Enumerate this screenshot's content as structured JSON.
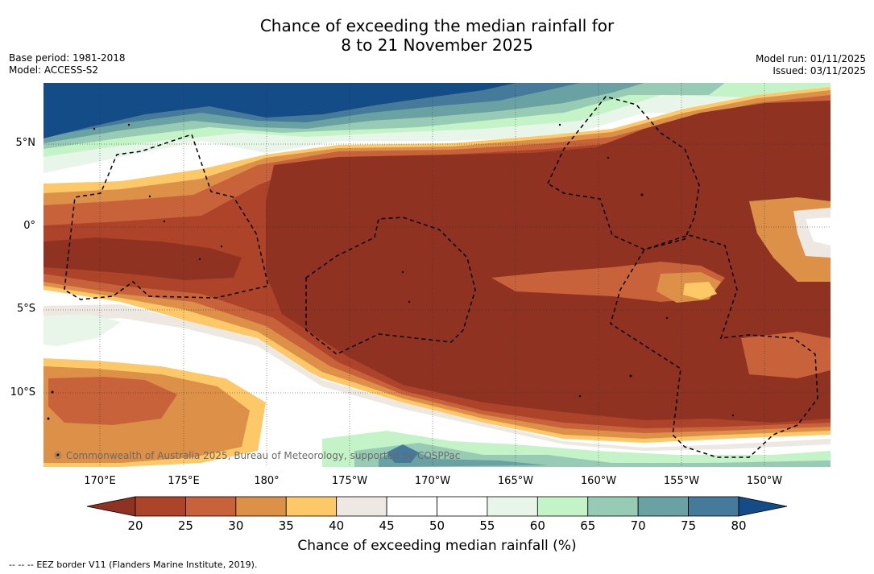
{
  "title": {
    "line1": "Chance of exceeding the median rainfall for",
    "line2": "8 to 21 November 2025"
  },
  "metadata": {
    "base_period": "Base period: 1981-2018",
    "model": "Model: ACCESS-S2",
    "model_run": "Model run: 01/11/2025",
    "issued": "Issued: 03/11/2025"
  },
  "map": {
    "latitude_labels": [
      "5°N",
      "0°",
      "5°S",
      "10°S"
    ],
    "longitude_labels": [
      "170°E",
      "175°E",
      "180°",
      "175°W",
      "170°W",
      "165°W",
      "160°W",
      "155°W",
      "150°W"
    ],
    "copyright": "© Commonwealth of Australia 2025, Bureau of Meteorology, supported by COSPPac"
  },
  "colorbar": {
    "title": "Chance of exceeding median rainfall (%)",
    "ticks": [
      "20",
      "25",
      "30",
      "35",
      "40",
      "45",
      "50",
      "55",
      "60",
      "65",
      "70",
      "75",
      "80"
    ],
    "colors": {
      "below20": "#8f3221",
      "20-25": "#ad4429",
      "25-30": "#c8623a",
      "30-35": "#dc9048",
      "35-40": "#fdc968",
      "40-45": "#ede8e2",
      "45-50": "#ffffff",
      "50-55": "#ffffff",
      "55-60": "#e8f5e9",
      "60-65": "#c4f3c8",
      "65-70": "#97cbb5",
      "70-75": "#6aa2a4",
      "75-80": "#457a9b",
      "above80": "#134c86"
    }
  },
  "footer": {
    "legend_symbol": "-- -- --",
    "legend_text": "EEZ border V11 (Flanders Marine Institute, 2019)."
  }
}
